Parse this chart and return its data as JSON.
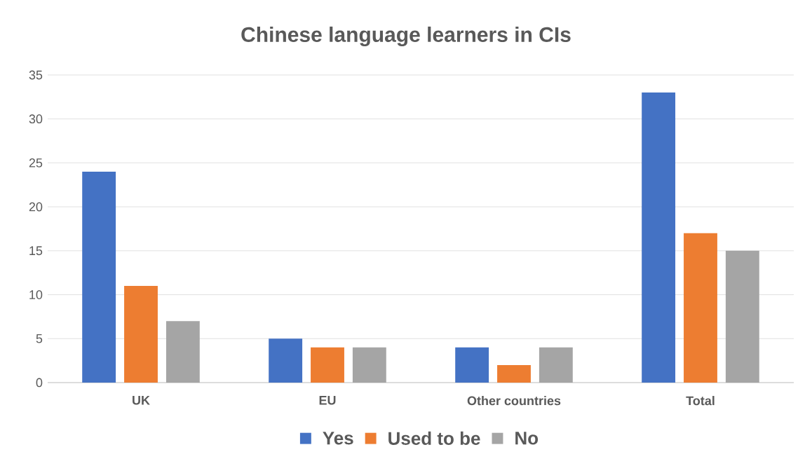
{
  "chart_data": {
    "type": "bar",
    "title": "Chinese language learners in CIs",
    "categories": [
      "UK",
      "EU",
      "Other countries",
      "Total"
    ],
    "series": [
      {
        "name": "Yes",
        "color": "#4472c4",
        "values": [
          24,
          5,
          4,
          33
        ]
      },
      {
        "name": "Used to be",
        "color": "#ed7d31",
        "values": [
          11,
          4,
          2,
          17
        ]
      },
      {
        "name": "No",
        "color": "#a5a5a5",
        "values": [
          7,
          4,
          4,
          15
        ]
      }
    ],
    "ylim": [
      0,
      35
    ],
    "yticks": [
      0,
      5,
      10,
      15,
      20,
      25,
      30,
      35
    ],
    "grid": "y",
    "legend": "bottom"
  }
}
